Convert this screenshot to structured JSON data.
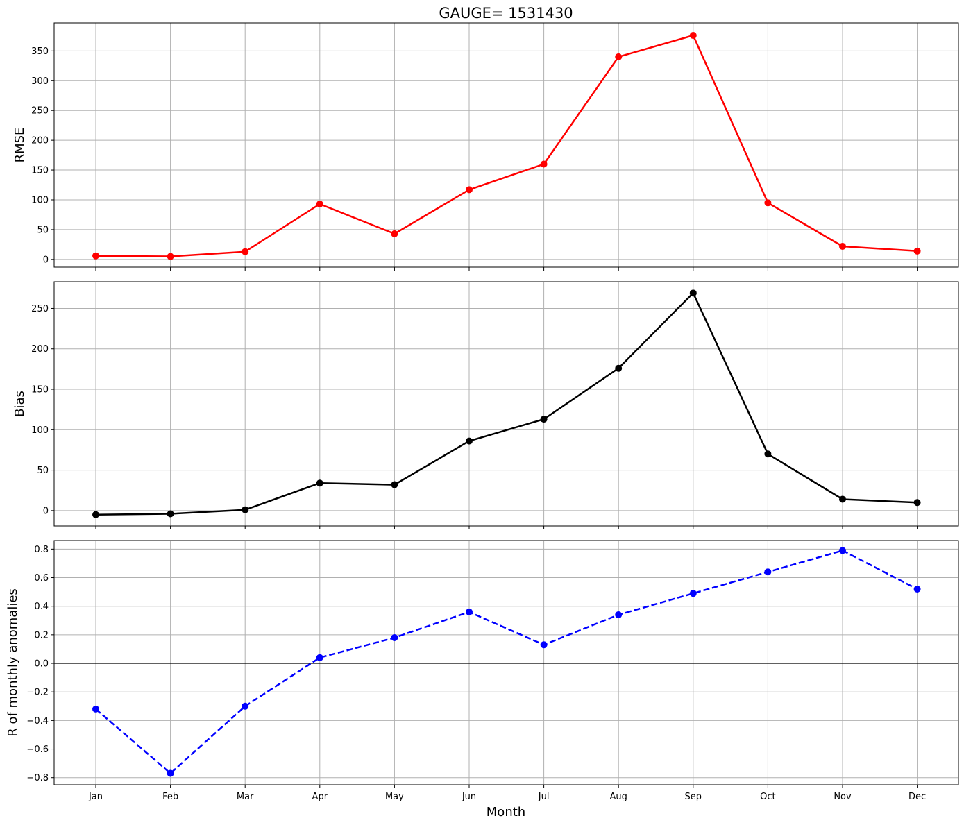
{
  "title": "GAUGE= 1531430",
  "xlabel": "Month",
  "chart_data": [
    {
      "type": "line",
      "ylabel": "RMSE",
      "categories": [
        "Jan",
        "Feb",
        "Mar",
        "Apr",
        "May",
        "Jun",
        "Jul",
        "Aug",
        "Sep",
        "Oct",
        "Nov",
        "Dec"
      ],
      "values": [
        6,
        5,
        13,
        93,
        43,
        117,
        160,
        340,
        376,
        95,
        22,
        14
      ],
      "ylim": [
        -13,
        397
      ],
      "yticks": [
        0,
        50,
        100,
        150,
        200,
        250,
        300,
        350
      ],
      "color": "#ff0000",
      "line_style": "solid",
      "grid": true,
      "show_xtick_labels": false
    },
    {
      "type": "line",
      "ylabel": "Bias",
      "categories": [
        "Jan",
        "Feb",
        "Mar",
        "Apr",
        "May",
        "Jun",
        "Jul",
        "Aug",
        "Sep",
        "Oct",
        "Nov",
        "Dec"
      ],
      "values": [
        -5,
        -4,
        1,
        34,
        32,
        86,
        113,
        176,
        269,
        70,
        14,
        10
      ],
      "ylim": [
        -19,
        283
      ],
      "yticks": [
        0,
        50,
        100,
        150,
        200,
        250
      ],
      "color": "#000000",
      "line_style": "solid",
      "grid": true,
      "show_xtick_labels": false
    },
    {
      "type": "line",
      "ylabel": "R of monthly anomalies",
      "categories": [
        "Jan",
        "Feb",
        "Mar",
        "Apr",
        "May",
        "Jun",
        "Jul",
        "Aug",
        "Sep",
        "Oct",
        "Nov",
        "Dec"
      ],
      "values": [
        -0.32,
        -0.77,
        -0.3,
        0.04,
        0.18,
        0.36,
        0.13,
        0.34,
        0.49,
        0.64,
        0.79,
        0.52
      ],
      "ylim": [
        -0.85,
        0.86
      ],
      "yticks": [
        -0.8,
        -0.6,
        -0.4,
        -0.2,
        0.0,
        0.2,
        0.4,
        0.6,
        0.8
      ],
      "ytick_labels": [
        "−0.8",
        "−0.6",
        "−0.4",
        "−0.2",
        "0.0",
        "0.2",
        "0.4",
        "0.6",
        "0.8"
      ],
      "color": "#0000ff",
      "line_style": "dashed",
      "zero_line": true,
      "grid": true,
      "show_xtick_labels": true
    }
  ]
}
